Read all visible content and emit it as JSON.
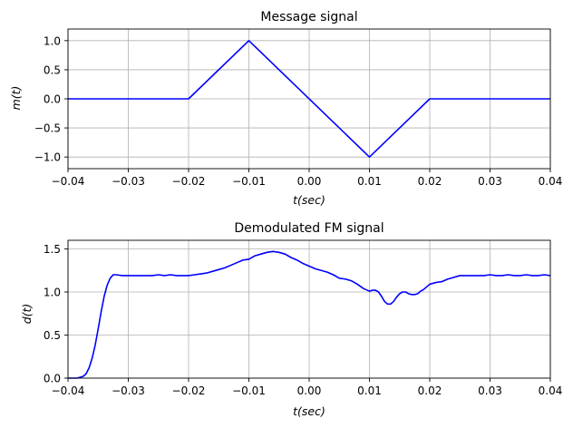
{
  "chart_data": [
    {
      "type": "line",
      "title": "Message signal",
      "xlabel": "t(sec)",
      "ylabel": "m(t)",
      "xlim": [
        -0.04,
        0.04
      ],
      "ylim": [
        -1.2,
        1.2
      ],
      "grid": true,
      "xticks": [
        -0.04,
        -0.03,
        -0.02,
        -0.01,
        0.0,
        0.01,
        0.02,
        0.03,
        0.04
      ],
      "xtick_labels": [
        "−0.04",
        "−0.03",
        "−0.02",
        "−0.01",
        "0.00",
        "0.01",
        "0.02",
        "0.03",
        "0.04"
      ],
      "yticks": [
        1.0,
        0.5,
        0.0,
        -0.5,
        -1.0
      ],
      "ytick_labels": [
        "1.0",
        "0.5",
        "0.0",
        "−0.5",
        "−1.0"
      ],
      "series": [
        {
          "color": "#0000ff",
          "x": [
            -0.04,
            -0.02,
            -0.01,
            0.01,
            0.02,
            0.04
          ],
          "y": [
            0,
            0,
            1,
            -1,
            0,
            0
          ]
        }
      ]
    },
    {
      "type": "line",
      "title": "Demodulated FM signal",
      "xlabel": "t(sec)",
      "ylabel": "d(t)",
      "xlim": [
        -0.04,
        0.04
      ],
      "ylim": [
        0,
        1.6
      ],
      "grid": true,
      "xticks": [
        -0.04,
        -0.03,
        -0.02,
        -0.01,
        0.0,
        0.01,
        0.02,
        0.03,
        0.04
      ],
      "xtick_labels": [
        "−0.04",
        "−0.03",
        "−0.02",
        "−0.01",
        "0.00",
        "0.01",
        "0.02",
        "0.03",
        "0.04"
      ],
      "yticks": [
        1.5,
        1.0,
        0.5,
        0.0
      ],
      "ytick_labels": [
        "1.5",
        "1.0",
        "0.5",
        "0.0"
      ],
      "series": [
        {
          "color": "#0000ff",
          "x": [
            -0.04,
            -0.0385,
            -0.0375,
            -0.037,
            -0.0365,
            -0.036,
            -0.0355,
            -0.035,
            -0.0345,
            -0.034,
            -0.0335,
            -0.033,
            -0.0325,
            -0.032,
            -0.031,
            -0.03,
            -0.029,
            -0.028,
            -0.027,
            -0.026,
            -0.025,
            -0.024,
            -0.023,
            -0.022,
            -0.021,
            -0.02,
            -0.019,
            -0.018,
            -0.017,
            -0.016,
            -0.015,
            -0.014,
            -0.013,
            -0.012,
            -0.011,
            -0.01,
            -0.009,
            -0.008,
            -0.007,
            -0.006,
            -0.005,
            -0.004,
            -0.003,
            -0.002,
            -0.001,
            0.0,
            0.001,
            0.002,
            0.003,
            0.004,
            0.005,
            0.006,
            0.007,
            0.008,
            0.009,
            0.01,
            0.0105,
            0.011,
            0.0115,
            0.012,
            0.0125,
            0.013,
            0.0135,
            0.014,
            0.0145,
            0.015,
            0.0155,
            0.016,
            0.0165,
            0.017,
            0.0175,
            0.018,
            0.0185,
            0.019,
            0.0195,
            0.02,
            0.021,
            0.022,
            0.023,
            0.024,
            0.025,
            0.026,
            0.027,
            0.028,
            0.029,
            0.03,
            0.031,
            0.032,
            0.033,
            0.034,
            0.035,
            0.036,
            0.037,
            0.038,
            0.039,
            0.04
          ],
          "y": [
            0.0,
            0.0,
            0.02,
            0.05,
            0.12,
            0.23,
            0.38,
            0.57,
            0.77,
            0.95,
            1.08,
            1.16,
            1.2,
            1.2,
            1.19,
            1.19,
            1.19,
            1.19,
            1.19,
            1.19,
            1.2,
            1.19,
            1.2,
            1.19,
            1.19,
            1.19,
            1.2,
            1.21,
            1.22,
            1.24,
            1.26,
            1.28,
            1.31,
            1.34,
            1.37,
            1.38,
            1.42,
            1.44,
            1.46,
            1.47,
            1.46,
            1.44,
            1.4,
            1.37,
            1.33,
            1.3,
            1.27,
            1.25,
            1.23,
            1.2,
            1.16,
            1.15,
            1.13,
            1.09,
            1.04,
            1.01,
            1.02,
            1.02,
            1.0,
            0.95,
            0.89,
            0.86,
            0.86,
            0.89,
            0.94,
            0.98,
            1.0,
            1.0,
            0.98,
            0.97,
            0.97,
            0.98,
            1.01,
            1.03,
            1.06,
            1.09,
            1.11,
            1.12,
            1.15,
            1.17,
            1.19,
            1.19,
            1.19,
            1.19,
            1.19,
            1.2,
            1.19,
            1.19,
            1.2,
            1.19,
            1.19,
            1.2,
            1.19,
            1.19,
            1.2,
            1.19
          ]
        }
      ]
    }
  ]
}
